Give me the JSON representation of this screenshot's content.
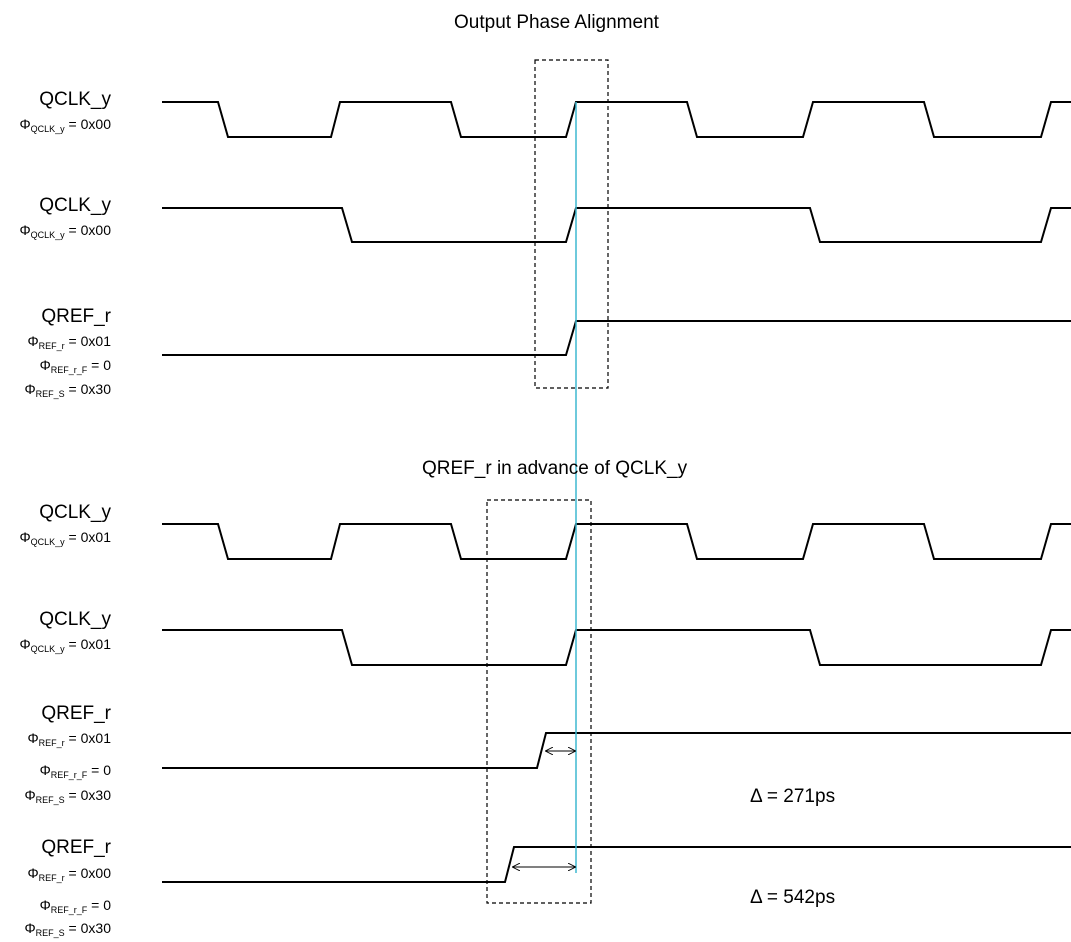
{
  "titles": {
    "top": "Output Phase Alignment",
    "bottom": "QREF_r in advance of QCLK_y"
  },
  "labels": {
    "qclk": "QCLK_y",
    "qref": "QREF_r",
    "phi": "Φ",
    "sub_qclk": "QCLK_y",
    "sub_ref_r": "REF_r",
    "sub_ref_r_f": "REF_r_F",
    "sub_ref_s": "REF_S",
    "eq_0x00": " = 0x00",
    "eq_0x01": " = 0x01",
    "eq_0": " = 0",
    "eq_0x30": " = 0x30"
  },
  "deltas": {
    "d1": "Δ = 271ps",
    "d2": "Δ = 542ps"
  },
  "colors": {
    "waveform": "#000000",
    "reference_line": "#3fb8d0",
    "highlight_box": "#000000"
  }
}
